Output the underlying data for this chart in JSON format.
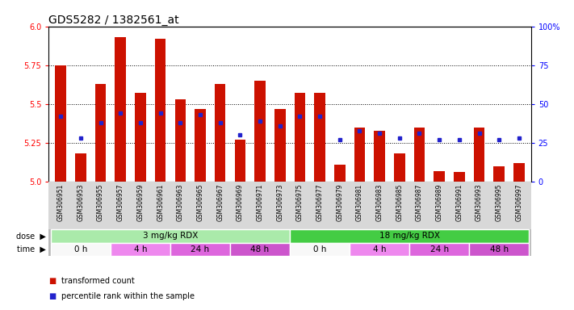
{
  "title": "GDS5282 / 1382561_at",
  "samples": [
    "GSM306951",
    "GSM306953",
    "GSM306955",
    "GSM306957",
    "GSM306959",
    "GSM306961",
    "GSM306963",
    "GSM306965",
    "GSM306967",
    "GSM306969",
    "GSM306971",
    "GSM306973",
    "GSM306975",
    "GSM306977",
    "GSM306979",
    "GSM306981",
    "GSM306983",
    "GSM306985",
    "GSM306987",
    "GSM306989",
    "GSM306991",
    "GSM306993",
    "GSM306995",
    "GSM306997"
  ],
  "bar_values": [
    5.75,
    5.18,
    5.63,
    5.93,
    5.57,
    5.92,
    5.53,
    5.47,
    5.63,
    5.27,
    5.65,
    5.47,
    5.57,
    5.57,
    5.11,
    5.35,
    5.33,
    5.18,
    5.35,
    5.07,
    5.06,
    5.35,
    5.1,
    5.12
  ],
  "percentile_values": [
    42,
    28,
    38,
    44,
    38,
    44,
    38,
    43,
    38,
    30,
    39,
    36,
    42,
    42,
    27,
    33,
    31,
    28,
    31,
    27,
    27,
    31,
    27,
    28
  ],
  "ymin": 5.0,
  "ymax": 6.0,
  "yticks": [
    5.0,
    5.25,
    5.5,
    5.75,
    6.0
  ],
  "bar_color": "#cc1100",
  "dot_color": "#2222cc",
  "dose_groups": [
    {
      "label": "3 mg/kg RDX",
      "start": 0,
      "end": 12,
      "color": "#aaeaaa"
    },
    {
      "label": "18 mg/kg RDX",
      "start": 12,
      "end": 24,
      "color": "#44cc44"
    }
  ],
  "time_groups": [
    {
      "label": "0 h",
      "start": 0,
      "end": 3,
      "color": "#f8f8f8"
    },
    {
      "label": "4 h",
      "start": 3,
      "end": 6,
      "color": "#ee88ee"
    },
    {
      "label": "24 h",
      "start": 6,
      "end": 9,
      "color": "#dd66dd"
    },
    {
      "label": "48 h",
      "start": 9,
      "end": 12,
      "color": "#cc55cc"
    },
    {
      "label": "0 h",
      "start": 12,
      "end": 15,
      "color": "#f8f8f8"
    },
    {
      "label": "4 h",
      "start": 15,
      "end": 18,
      "color": "#ee88ee"
    },
    {
      "label": "24 h",
      "start": 18,
      "end": 21,
      "color": "#dd66dd"
    },
    {
      "label": "48 h",
      "start": 21,
      "end": 24,
      "color": "#cc55cc"
    }
  ],
  "legend": [
    {
      "label": "transformed count",
      "color": "#cc1100"
    },
    {
      "label": "percentile rank within the sample",
      "color": "#2222cc"
    }
  ],
  "xtick_bg": "#d8d8d8",
  "grid_line_color": "#555555",
  "title_fontsize": 10,
  "tick_fontsize": 7,
  "xtick_fontsize": 5.5,
  "row_fontsize": 7.5
}
